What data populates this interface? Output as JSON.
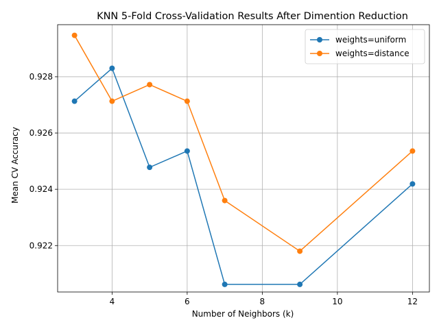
{
  "chart_data": {
    "type": "line",
    "title": "KNN 5-Fold Cross-Validation Results After Dimention Reduction",
    "xlabel": "Number of Neighbors (k)",
    "ylabel": "Mean CV Accuracy",
    "x": [
      3,
      4,
      5,
      6,
      7,
      9,
      12
    ],
    "xlim": [
      2.55,
      12.45
    ],
    "ylim": [
      0.92035,
      0.92985
    ],
    "xticks": [
      4,
      6,
      8,
      10,
      12
    ],
    "yticks": [
      0.922,
      0.924,
      0.926,
      0.928
    ],
    "xtick_labels": [
      "4",
      "6",
      "8",
      "10",
      "12"
    ],
    "ytick_labels": [
      "0.922",
      "0.924",
      "0.926",
      "0.928"
    ],
    "grid": true,
    "legend_position": "top-right",
    "series": [
      {
        "name": "weights=uniform",
        "color": "#1f77b4",
        "marker": "circle",
        "values": [
          0.92713,
          0.9283,
          0.92478,
          0.92536,
          0.92062,
          0.92062,
          0.92419
        ]
      },
      {
        "name": "weights=distance",
        "color": "#ff7f0e",
        "marker": "circle",
        "values": [
          0.92947,
          0.92713,
          0.92772,
          0.92713,
          0.9236,
          0.9218,
          0.92536
        ]
      }
    ]
  }
}
